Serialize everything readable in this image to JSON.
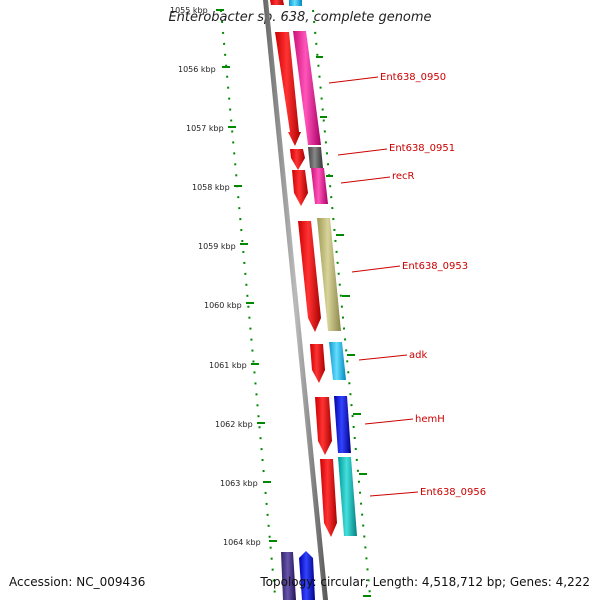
{
  "title": "Enterobacter sp. 638, complete genome",
  "footer": {
    "accession": "Accession: NC_009436",
    "summary": "Topology: circular; Length: 4,518,712 bp; Genes: 4,222"
  },
  "kbp_labels": [
    "1055 kbp",
    "1056 kbp",
    "1057 kbp",
    "1058 kbp",
    "1059 kbp",
    "1060 kbp",
    "1061 kbp",
    "1062 kbp",
    "1063 kbp",
    "1064 kbp"
  ],
  "genes": [
    {
      "name": "Ent638_0950",
      "color": "#ff2299"
    },
    {
      "name": "Ent638_0951",
      "color": "#666666"
    },
    {
      "name": "recR",
      "color": "#ee1199"
    },
    {
      "name": "Ent638_0953",
      "color": "#bdb76b"
    },
    {
      "name": "adk",
      "color": "#22bbee"
    },
    {
      "name": "hemH",
      "color": "#0000ee"
    },
    {
      "name": "Ent638_0956",
      "color": "#11bbbb"
    }
  ],
  "colors": {
    "backbone": "#888888",
    "cds": "#ff0000",
    "tick": "#008800",
    "label": "#cc0000"
  }
}
